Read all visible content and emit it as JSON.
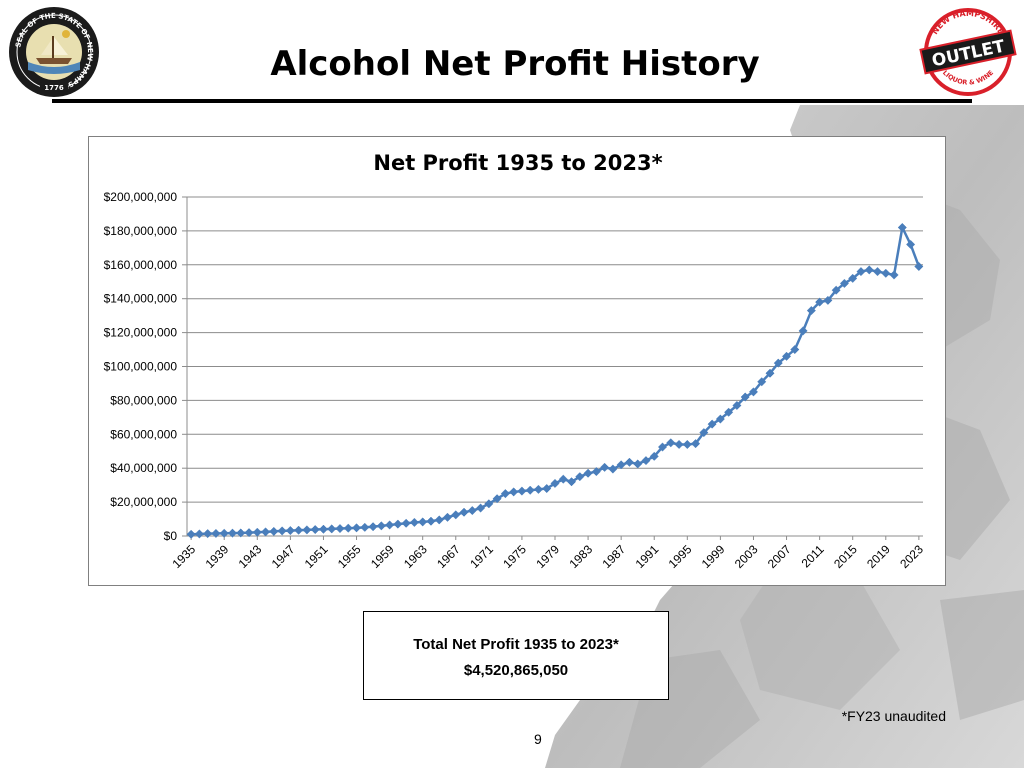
{
  "slide": {
    "title": "Alcohol Net Profit History",
    "footnote": "*FY23 unaudited",
    "page_number": "9"
  },
  "seal": {
    "top_text": "SEAL OF THE STATE OF NEW HAMPSHIRE",
    "year": "1776"
  },
  "logo": {
    "arc_text_top": "NEW HAMPSHIRE",
    "band_text": "OUTLET",
    "arc_text_bottom": "LIQUOR & WINE",
    "color": "#d9202a"
  },
  "total_box": {
    "label": "Total Net Profit 1935 to 2023*",
    "value": "$4,520,865,050"
  },
  "colors": {
    "series": "#4a7ebb",
    "gridline": "#8c8c8c"
  },
  "chart_data": {
    "type": "line",
    "title": "Net Profit 1935 to 2023*",
    "xlabel": "",
    "ylabel": "",
    "ylim": [
      0,
      200000000
    ],
    "ytick_step": 20000000,
    "ytick_labels": [
      "$0",
      "$20,000,000",
      "$40,000,000",
      "$60,000,000",
      "$80,000,000",
      "$100,000,000",
      "$120,000,000",
      "$140,000,000",
      "$160,000,000",
      "$180,000,000",
      "$200,000,000"
    ],
    "x_start": 1935,
    "x_end": 2023,
    "x_tick_labels": [
      "1935",
      "1939",
      "1943",
      "1947",
      "1951",
      "1955",
      "1959",
      "1963",
      "1967",
      "1971",
      "1975",
      "1979",
      "1983",
      "1987",
      "1991",
      "1995",
      "1999",
      "2003",
      "2007",
      "2011",
      "2015",
      "2019",
      "2023"
    ],
    "legend": "none",
    "marker": "diamond",
    "series": [
      {
        "name": "Net Profit",
        "values": [
          1000000,
          1200000,
          1400000,
          1500000,
          1600000,
          1700000,
          1800000,
          2000000,
          2200000,
          2400000,
          2700000,
          3000000,
          3200000,
          3400000,
          3600000,
          3800000,
          4000000,
          4200000,
          4400000,
          4600000,
          4800000,
          5100000,
          5500000,
          6000000,
          6500000,
          7000000,
          7500000,
          8000000,
          8300000,
          8700000,
          9500000,
          11000000,
          12500000,
          14000000,
          15000000,
          16500000,
          19000000,
          22000000,
          25000000,
          26000000,
          26500000,
          27000000,
          27500000,
          28000000,
          31000000,
          33500000,
          32000000,
          35000000,
          37000000,
          38000000,
          40500000,
          39500000,
          42000000,
          43500000,
          42500000,
          44500000,
          47000000,
          52500000,
          55000000,
          54000000,
          54000000,
          54500000,
          61000000,
          66000000,
          69000000,
          73000000,
          77000000,
          82000000,
          85000000,
          91000000,
          96000000,
          102000000,
          106000000,
          110000000,
          121000000,
          133000000,
          138000000,
          139000000,
          145000000,
          149000000,
          152000000,
          156000000,
          157000000,
          156000000,
          155000000,
          154000000,
          182000000,
          172000000,
          159000000
        ]
      }
    ]
  }
}
